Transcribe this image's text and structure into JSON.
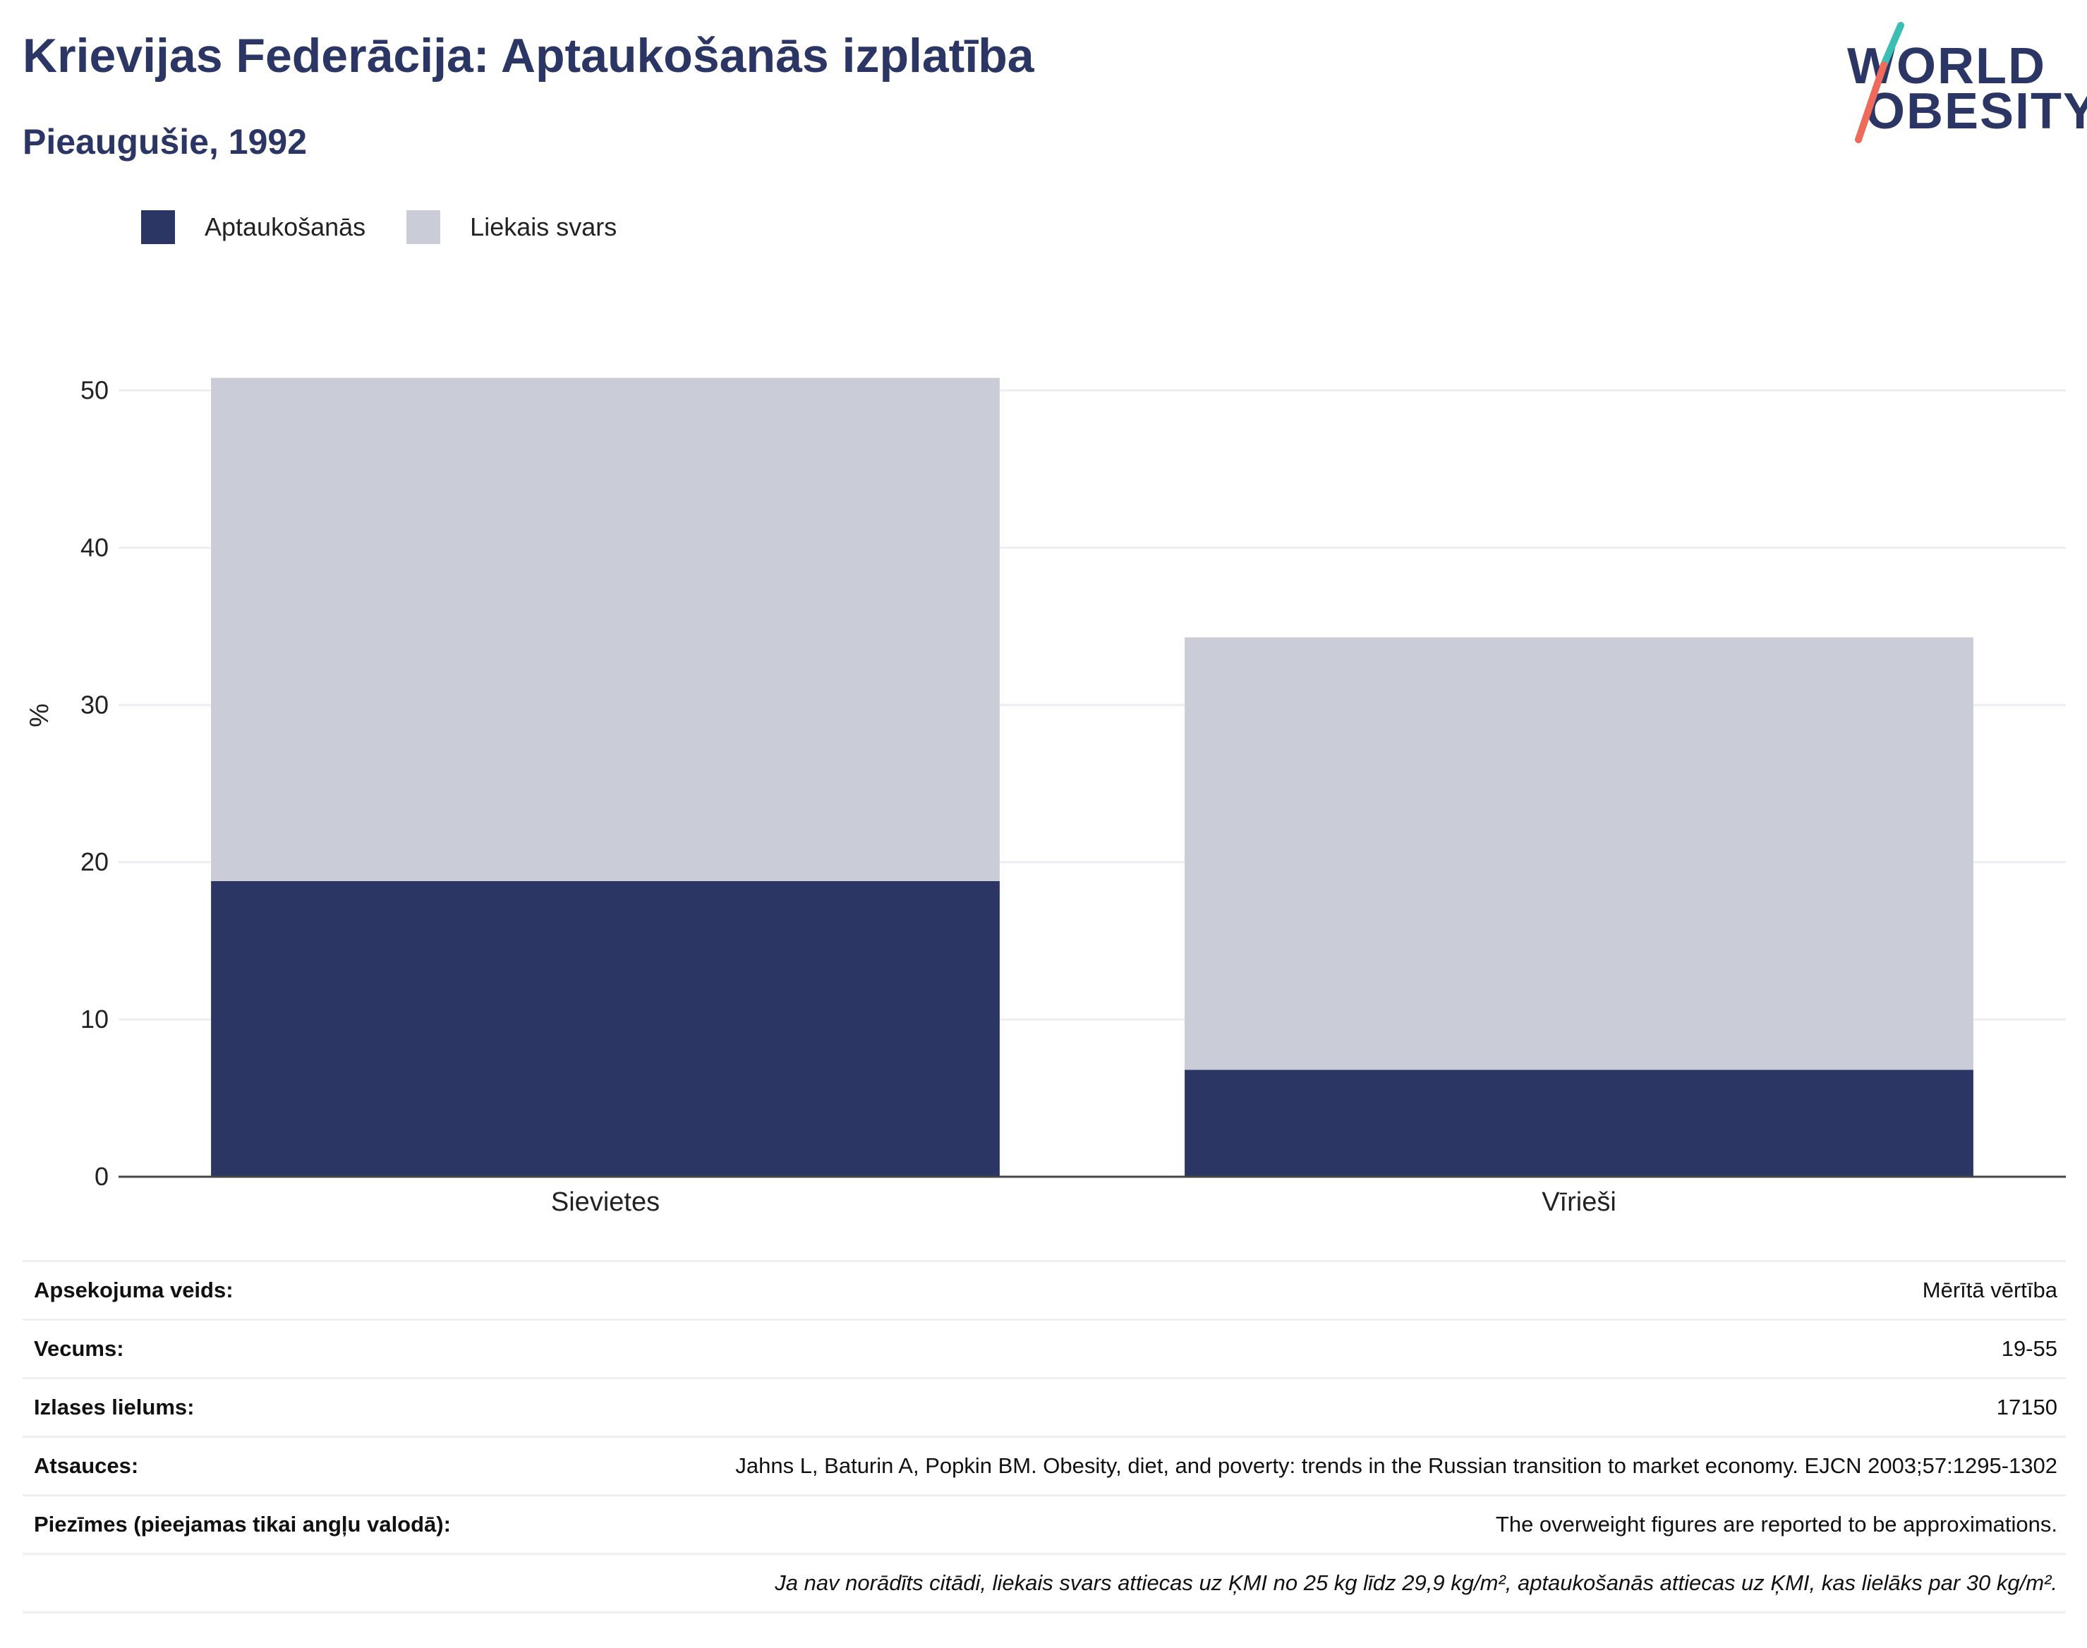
{
  "header": {
    "title": "Krievijas Federācija: Aptaukošanās izplatība",
    "subtitle": "Pieaugušie, 1992"
  },
  "logo": {
    "line1": "WORLD",
    "line2": "OBESITY",
    "colors": {
      "navy": "#2b3664",
      "teal": "#3bbfb4",
      "coral": "#ee6b5b"
    }
  },
  "legend": [
    {
      "label": "Aptaukošanās",
      "color": "#2b3664"
    },
    {
      "label": "Liekais svars",
      "color": "#caccd7"
    }
  ],
  "chart_data": {
    "type": "bar",
    "stacked": true,
    "categories": [
      "Sievietes",
      "Vīrieši"
    ],
    "series": [
      {
        "name": "Aptaukošanās",
        "values": [
          18.8,
          6.8
        ],
        "color": "#2b3664"
      },
      {
        "name": "Liekais svars",
        "values": [
          32.0,
          27.5
        ],
        "color": "#caccd7"
      }
    ],
    "ylabel": "%",
    "xlabel": "",
    "ylim": [
      0,
      50
    ],
    "yticks": [
      0,
      10,
      20,
      30,
      40,
      50
    ],
    "grid": true,
    "legend_position": "top-left"
  },
  "info": {
    "rows": [
      {
        "label": "Apsekojuma veids:",
        "value": "Mērītā vērtība"
      },
      {
        "label": "Vecums:",
        "value": "19-55"
      },
      {
        "label": "Izlases lielums:",
        "value": "17150"
      },
      {
        "label": "Atsauces:",
        "value": "Jahns L, Baturin A, Popkin BM. Obesity, diet, and poverty: trends in the Russian transition to market economy. EJCN 2003;57:1295-1302"
      },
      {
        "label": "Piezīmes (pieejamas tikai angļu valodā):",
        "value": "The overweight figures are reported to be approximations."
      }
    ],
    "footnote": "Ja nav norādīts citādi, liekais svars attiecas uz ĶMI no 25 kg līdz 29,9 kg/m², aptaukošanās attiecas uz ĶMI, kas lielāks par 30 kg/m²."
  }
}
